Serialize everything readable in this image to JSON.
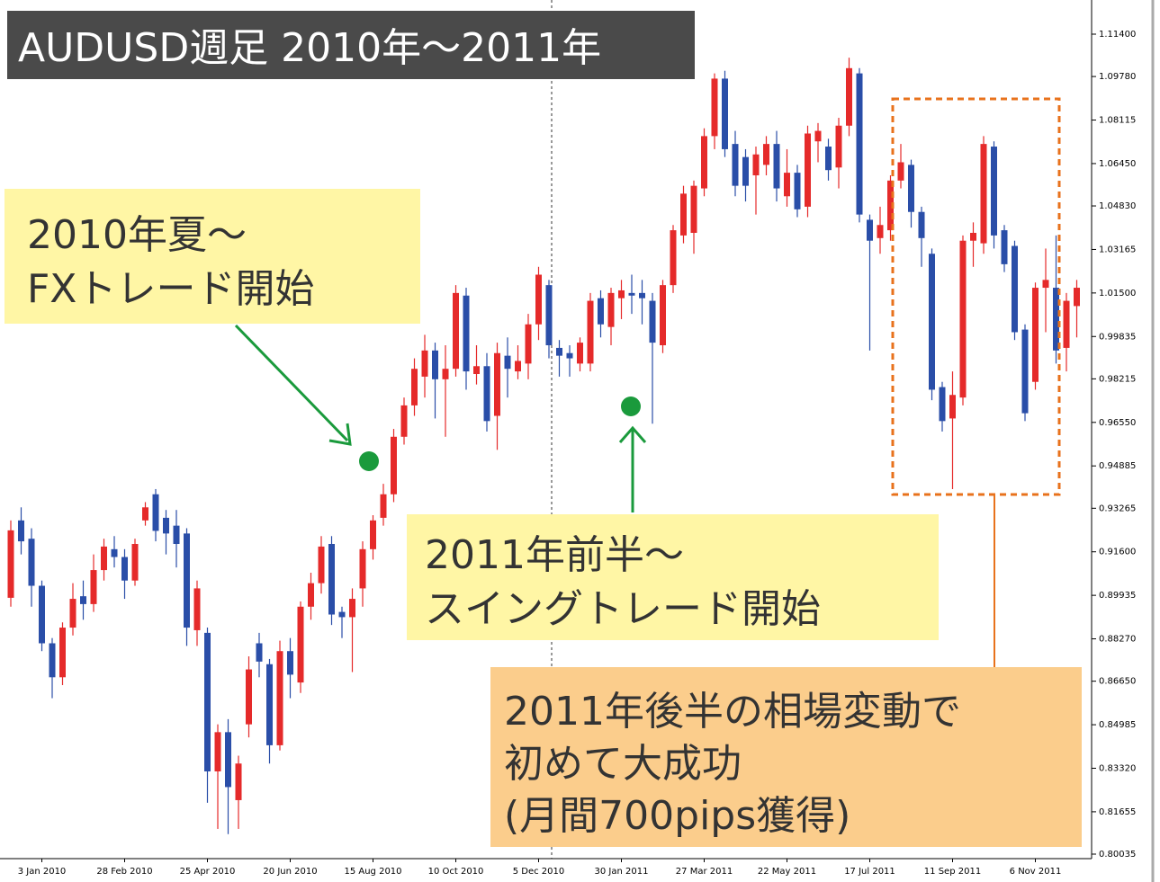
{
  "chart_data": {
    "type": "candlestick",
    "title": "AUDUSD週足 2010年〜2011年",
    "up_color": "#e52a2a",
    "down_color": "#2a4ea8",
    "categories": [
      null,
      null,
      null,
      "3 Jan 2010",
      null,
      null,
      null,
      null,
      null,
      null,
      null,
      "28 Feb 2010",
      null,
      null,
      null,
      null,
      null,
      null,
      null,
      "25 Apr 2010",
      null,
      null,
      null,
      null,
      null,
      null,
      null,
      "20 Jun 2010",
      null,
      null,
      null,
      null,
      null,
      null,
      null,
      "15 Aug 2010",
      null,
      null,
      null,
      null,
      null,
      null,
      null,
      "10 Oct 2010",
      null,
      null,
      null,
      null,
      null,
      null,
      null,
      "5 Dec 2010",
      null,
      null,
      null,
      null,
      null,
      null,
      null,
      "30 Jan 2011",
      null,
      null,
      null,
      null,
      null,
      null,
      null,
      "27 Mar 2011",
      null,
      null,
      null,
      null,
      null,
      null,
      null,
      "22 May 2011",
      null,
      null,
      null,
      null,
      null,
      null,
      null,
      "17 Jul 2011",
      null,
      null,
      null,
      null,
      null,
      null,
      null,
      "11 Sep 2011",
      null,
      null,
      null,
      null,
      null,
      null,
      null,
      "6 Nov 2011",
      null,
      null,
      null,
      null
    ],
    "open": [
      0.8984,
      0.928,
      0.921,
      0.903,
      0.881,
      0.868,
      0.887,
      0.899,
      0.896,
      0.909,
      0.917,
      0.914,
      0.905,
      0.928,
      0.938,
      0.929,
      0.926,
      0.923,
      0.886,
      0.885,
      0.832,
      0.847,
      0.821,
      0.85,
      0.881,
      0.873,
      0.842,
      0.878,
      0.866,
      0.895,
      0.904,
      0.919,
      0.893,
      0.891,
      0.902,
      0.917,
      0.929,
      0.938,
      0.96,
      0.972,
      0.983,
      0.993,
      0.982,
      0.986,
      1.014,
      0.984,
      0.987,
      0.968,
      0.991,
      0.985,
      0.988,
      1.003,
      1.018,
      0.994,
      0.992,
      0.988,
      0.988,
      1.013,
      1.002,
      1.013,
      1.015,
      1.015,
      1.012,
      0.995,
      1.018,
      1.037,
      1.038,
      1.055,
      1.075,
      1.097,
      1.072,
      1.067,
      1.06,
      1.064,
      1.072,
      1.052,
      1.061,
      1.048,
      1.073,
      1.071,
      1.063,
      1.079,
      1.099,
      1.043,
      1.036,
      1.039,
      1.058,
      1.064,
      1.046,
      1.03,
      0.979,
      0.967,
      0.975,
      1.035,
      1.034,
      1.071,
      1.039,
      1.033,
      1.001,
      0.981,
      1.017,
      1.017,
      0.994,
      1.01
    ],
    "high": [
      0.928,
      0.933,
      0.925,
      0.905,
      0.883,
      0.889,
      0.904,
      0.905,
      0.915,
      0.921,
      0.922,
      0.917,
      0.921,
      0.935,
      0.94,
      0.932,
      0.932,
      0.925,
      0.905,
      0.887,
      0.85,
      0.852,
      0.838,
      0.876,
      0.885,
      0.875,
      0.882,
      0.883,
      0.897,
      0.908,
      0.922,
      0.922,
      0.895,
      0.902,
      0.92,
      0.93,
      0.942,
      0.963,
      0.975,
      0.99,
      0.999,
      0.996,
      0.995,
      1.018,
      1.017,
      0.995,
      0.992,
      0.996,
      0.998,
      0.995,
      1.007,
      1.025,
      1.02,
      0.997,
      0.995,
      0.998,
      1.015,
      1.016,
      1.017,
      1.02,
      1.022,
      1.02,
      1.015,
      1.02,
      1.041,
      1.056,
      1.058,
      1.078,
      1.099,
      1.1,
      1.077,
      1.07,
      1.071,
      1.075,
      1.077,
      1.07,
      1.064,
      1.079,
      1.08,
      1.074,
      1.082,
      1.105,
      1.101,
      1.045,
      1.048,
      1.06,
      1.072,
      1.066,
      1.048,
      1.032,
      0.981,
      0.985,
      1.037,
      1.042,
      1.075,
      1.073,
      1.041,
      1.035,
      1.003,
      1.019,
      1.032,
      1.037,
      1.015,
      1.02
    ],
    "low": [
      0.895,
      0.915,
      0.895,
      0.878,
      0.86,
      0.865,
      0.884,
      0.89,
      0.893,
      0.905,
      0.91,
      0.898,
      0.903,
      0.926,
      0.92,
      0.915,
      0.91,
      0.88,
      0.88,
      0.82,
      0.81,
      0.808,
      0.81,
      0.845,
      0.868,
      0.835,
      0.84,
      0.86,
      0.862,
      0.89,
      0.9,
      0.888,
      0.883,
      0.87,
      0.895,
      0.913,
      0.926,
      0.935,
      0.957,
      0.968,
      0.975,
      0.967,
      0.96,
      0.983,
      0.978,
      0.98,
      0.962,
      0.955,
      0.975,
      0.982,
      0.982,
      0.997,
      0.99,
      0.983,
      0.983,
      0.985,
      0.985,
      0.998,
      0.995,
      1.005,
      1.007,
      1.003,
      0.965,
      0.992,
      1.015,
      1.034,
      1.03,
      1.052,
      1.07,
      1.067,
      1.052,
      1.05,
      1.045,
      1.06,
      1.05,
      1.048,
      1.044,
      1.044,
      1.065,
      1.058,
      1.055,
      1.075,
      1.042,
      0.993,
      1.03,
      1.035,
      1.055,
      1.04,
      1.025,
      0.974,
      0.962,
      0.94,
      0.972,
      1.025,
      1.03,
      1.032,
      1.023,
      0.997,
      0.966,
      0.978,
      1.0,
      0.988,
      0.985,
      0.998
    ],
    "close": [
      0.9242,
      0.92,
      0.903,
      0.881,
      0.868,
      0.887,
      0.898,
      0.896,
      0.909,
      0.918,
      0.914,
      0.905,
      0.919,
      0.933,
      0.924,
      0.923,
      0.919,
      0.887,
      0.902,
      0.832,
      0.847,
      0.826,
      0.835,
      0.871,
      0.874,
      0.842,
      0.878,
      0.869,
      0.895,
      0.904,
      0.918,
      0.892,
      0.891,
      0.898,
      0.917,
      0.928,
      0.938,
      0.96,
      0.972,
      0.986,
      0.993,
      0.982,
      0.986,
      1.015,
      0.985,
      0.987,
      0.966,
      0.992,
      0.986,
      0.989,
      1.003,
      1.022,
      0.995,
      0.991,
      0.99,
      0.996,
      1.012,
      1.003,
      1.015,
      1.016,
      1.014,
      1.013,
      0.996,
      1.018,
      1.039,
      1.053,
      1.056,
      1.075,
      1.097,
      1.07,
      1.056,
      1.056,
      1.068,
      1.072,
      1.055,
      1.061,
      1.047,
      1.076,
      1.077,
      1.062,
      1.079,
      1.101,
      1.045,
      1.035,
      1.041,
      1.058,
      1.065,
      1.046,
      1.036,
      0.978,
      0.966,
      0.976,
      1.035,
      1.038,
      1.072,
      1.037,
      1.026,
      1.0,
      0.969,
      1.017,
      1.02,
      0.993,
      1.012,
      1.017
    ],
    "ylim": [
      0.80035,
      1.114
    ],
    "yticks": [
      {
        "value": 1.114,
        "label": "1.11400"
      },
      {
        "value": 1.0978,
        "label": "1.09780"
      },
      {
        "value": 1.08115,
        "label": "1.08115"
      },
      {
        "value": 1.0645,
        "label": "1.06450"
      },
      {
        "value": 1.0483,
        "label": "1.04830"
      },
      {
        "value": 1.03165,
        "label": "1.03165"
      },
      {
        "value": 1.015,
        "label": "1.01500"
      },
      {
        "value": 0.99835,
        "label": "0.99835"
      },
      {
        "value": 0.98215,
        "label": "0.98215"
      },
      {
        "value": 0.9655,
        "label": "0.96550"
      },
      {
        "value": 0.94885,
        "label": "0.94885"
      },
      {
        "value": 0.93265,
        "label": "0.93265"
      },
      {
        "value": 0.916,
        "label": "0.91600"
      },
      {
        "value": 0.89935,
        "label": "0.89935"
      },
      {
        "value": 0.8827,
        "label": "0.88270"
      },
      {
        "value": 0.8665,
        "label": "0.86650"
      },
      {
        "value": 0.84985,
        "label": "0.84985"
      },
      {
        "value": 0.8332,
        "label": "0.83320"
      },
      {
        "value": 0.81655,
        "label": "0.81655"
      },
      {
        "value": 0.80035,
        "label": "0.80035"
      }
    ],
    "annotations": [
      {
        "lines": [
          "2010年夏〜",
          "FXトレード開始"
        ]
      },
      {
        "lines": [
          "2011年前半〜",
          "スイングトレード開始"
        ]
      },
      {
        "lines": [
          "2011年後半の相場変動で",
          "初めて大成功",
          "(月間700pips獲得)"
        ]
      }
    ]
  }
}
